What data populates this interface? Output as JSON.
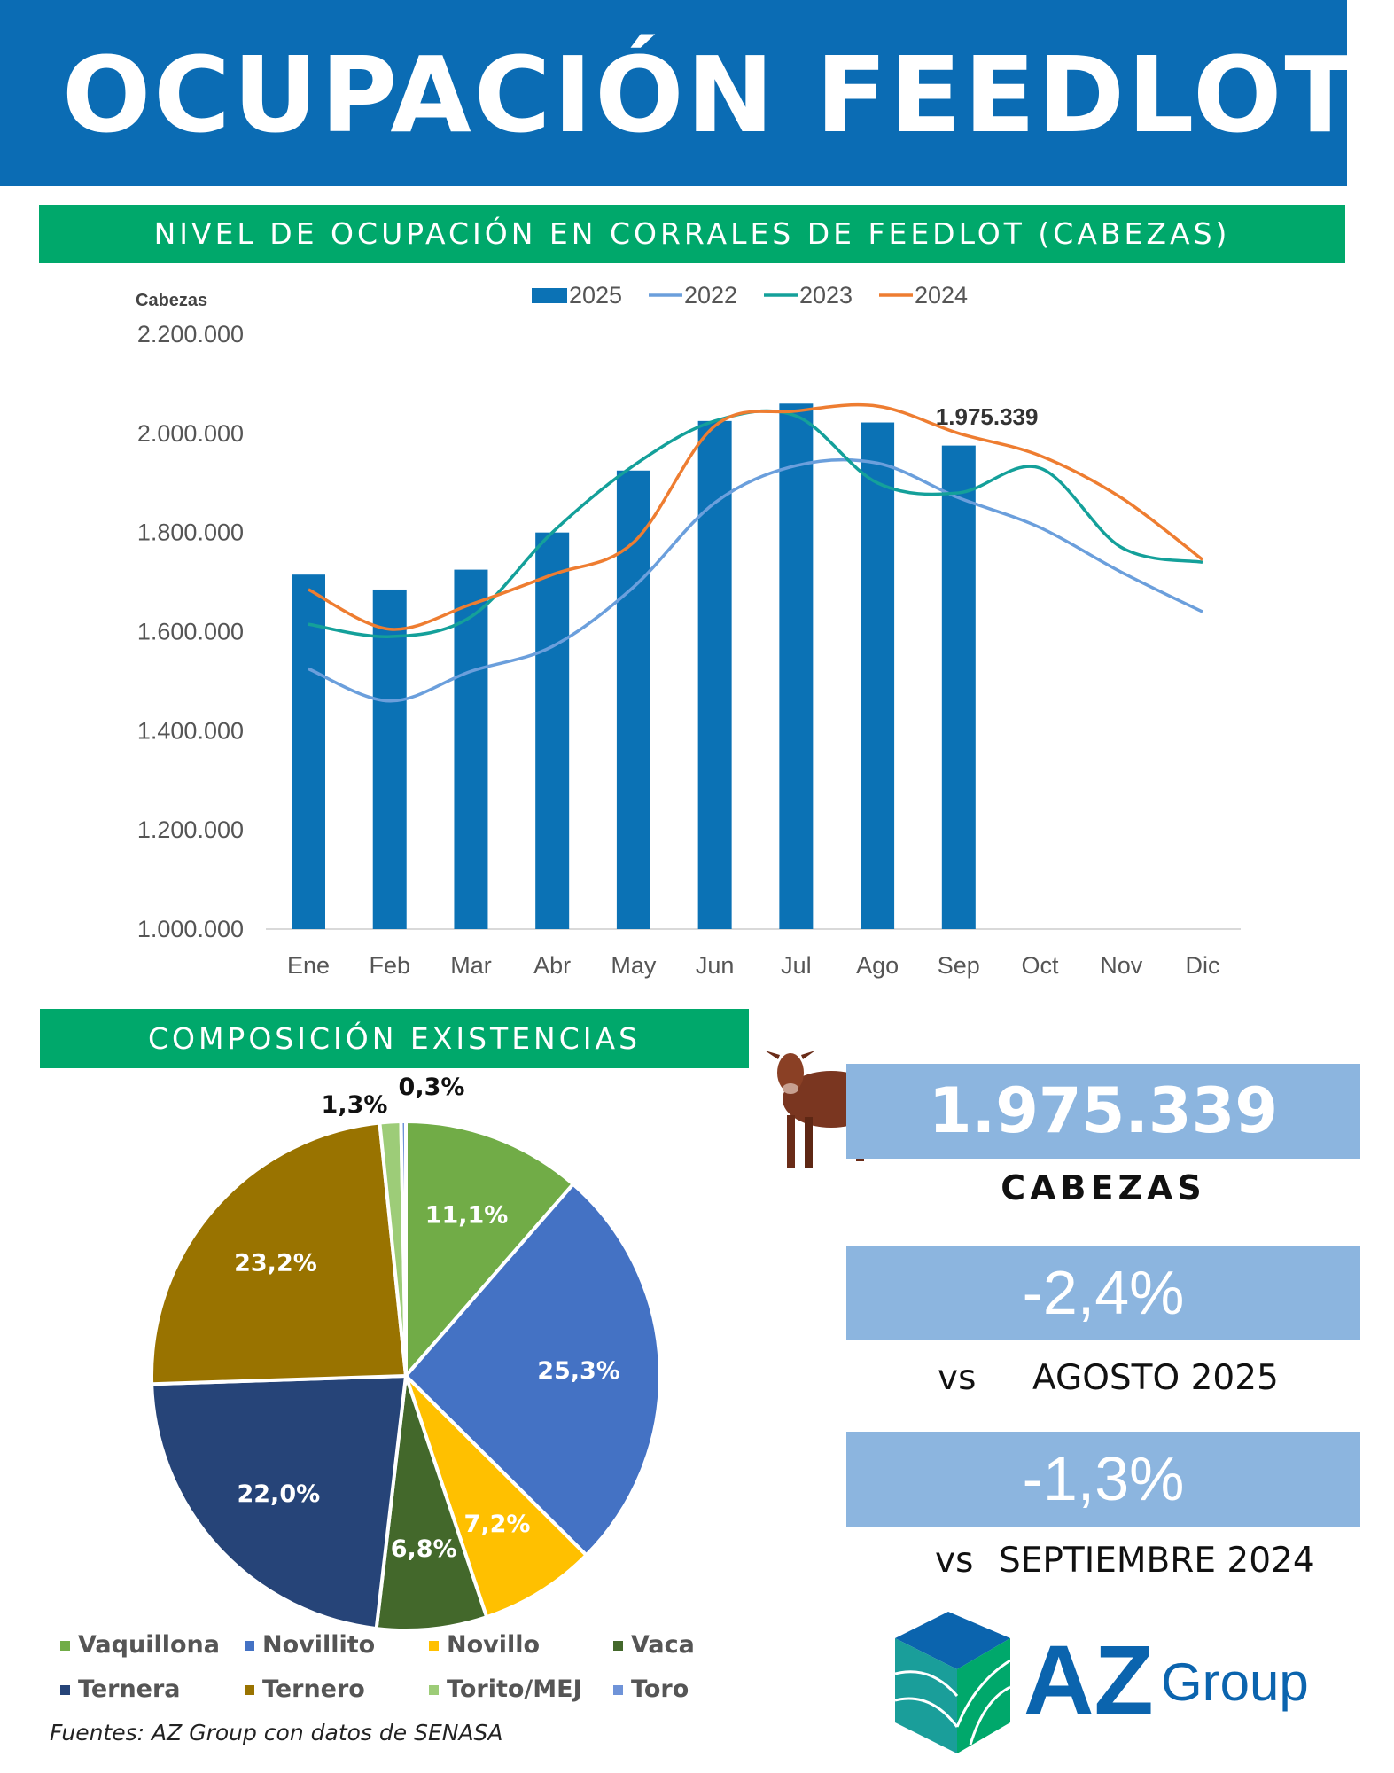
{
  "header": {
    "title": "OCUPACIÓN FEEDLOT"
  },
  "section1": {
    "title": "NIVEL DE OCUPACIÓN EN CORRALES DE FEEDLOT (CABEZAS)"
  },
  "section2": {
    "title": "COMPOSICIÓN EXISTENCIAS"
  },
  "chart_data": [
    {
      "type": "bar+line",
      "ylabel": "Cabezas",
      "ylim": [
        1000000,
        2200000
      ],
      "yticks": [
        "1.000.000",
        "1.200.000",
        "1.400.000",
        "1.600.000",
        "1.800.000",
        "2.000.000",
        "2.200.000"
      ],
      "ytick_values": [
        1000000,
        1200000,
        1400000,
        1600000,
        1800000,
        2000000,
        2200000
      ],
      "categories": [
        "Ene",
        "Feb",
        "Mar",
        "Abr",
        "May",
        "Jun",
        "Jul",
        "Ago",
        "Sep",
        "Oct",
        "Nov",
        "Dic"
      ],
      "legend": [
        "2025",
        "2022",
        "2023",
        "2024"
      ],
      "legend_position": "top",
      "series": [
        {
          "name": "2025",
          "kind": "bar",
          "color": "#0b72b5",
          "values": [
            1715000,
            1685000,
            1725000,
            1800000,
            1925000,
            2025000,
            2060000,
            2022000,
            1975339,
            null,
            null,
            null
          ]
        },
        {
          "name": "2022",
          "kind": "line",
          "color": "#6b9fdc",
          "values": [
            1525000,
            1460000,
            1520000,
            1570000,
            1690000,
            1860000,
            1935000,
            1940000,
            1870000,
            1810000,
            1720000,
            1640000
          ]
        },
        {
          "name": "2023",
          "kind": "line",
          "color": "#14a09a",
          "values": [
            1615000,
            1590000,
            1630000,
            1800000,
            1935000,
            2025000,
            2035000,
            1900000,
            1880000,
            1930000,
            1770000,
            1740000
          ]
        },
        {
          "name": "2024",
          "kind": "line",
          "color": "#ee7d31",
          "values": [
            1685000,
            1605000,
            1655000,
            1715000,
            1780000,
            2015000,
            2045000,
            2055000,
            2000000,
            1955000,
            1870000,
            1745000
          ]
        }
      ],
      "annotation": {
        "text": "1.975.339",
        "category": "Sep"
      }
    },
    {
      "type": "pie",
      "slices": [
        {
          "name": "Vaquillona",
          "value": 11.1,
          "label": "11,1%",
          "color": "#71ac47"
        },
        {
          "name": "Novillito",
          "value": 25.3,
          "label": "25,3%",
          "color": "#4472c4"
        },
        {
          "name": "Novillo",
          "value": 7.2,
          "label": "7,2%",
          "color": "#ffc000"
        },
        {
          "name": "Vaca",
          "value": 6.8,
          "label": "6,8%",
          "color": "#43682b"
        },
        {
          "name": "Ternera",
          "value": 22.0,
          "label": "22,0%",
          "color": "#264478"
        },
        {
          "name": "Ternero",
          "value": 23.2,
          "label": "23,2%",
          "color": "#997300"
        },
        {
          "name": "Torito/MEJ",
          "value": 1.3,
          "label": "1,3%",
          "color": "#9dcc78"
        },
        {
          "name": "Toro",
          "value": 0.3,
          "label": "0,3%",
          "color": "#6f93d8"
        }
      ],
      "legend_position": "bottom"
    }
  ],
  "source": "Fuentes: AZ Group con datos de SENASA",
  "kpis": {
    "total": "1.975.339",
    "total_unit": "CABEZAS",
    "change1": "-2,4%",
    "change1_vs": "vs",
    "change1_ref": "AGOSTO 2025",
    "change2": "-1,3%",
    "change2_vs": "vs",
    "change2_ref": "SEPTIEMBRE 2024"
  },
  "logo": {
    "text_main": "AZ",
    "text_sub": "Group"
  },
  "icons": {
    "cow": "cow-image",
    "logo": "az-group-cube-logo"
  }
}
